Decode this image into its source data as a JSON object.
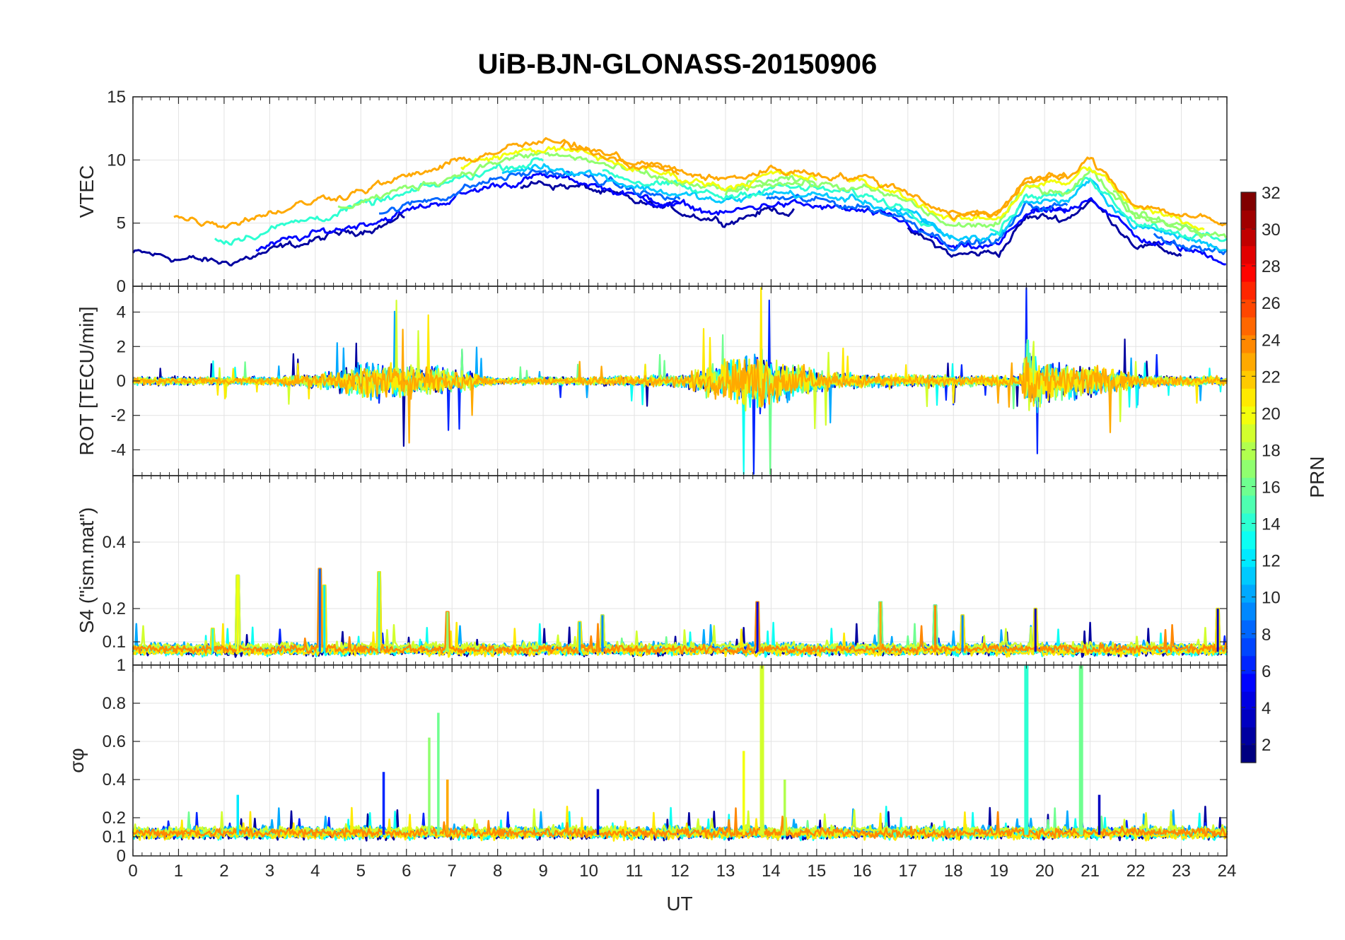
{
  "chart_data": {
    "type": "line",
    "title": "UiB-BJN-GLONASS-20150906",
    "xlabel": "UT",
    "xlim": [
      0,
      24
    ],
    "xticks": [
      "0",
      "1",
      "2",
      "3",
      "4",
      "5",
      "6",
      "7",
      "8",
      "9",
      "10",
      "11",
      "12",
      "13",
      "14",
      "15",
      "16",
      "17",
      "18",
      "19",
      "20",
      "21",
      "22",
      "23",
      "24"
    ],
    "grid": true,
    "colorbar": {
      "label": "PRN",
      "colormap": "jet",
      "range": [
        1,
        32
      ],
      "ticks": [
        "2",
        "4",
        "6",
        "8",
        "10",
        "12",
        "14",
        "16",
        "18",
        "20",
        "22",
        "24",
        "26",
        "28",
        "30",
        "32"
      ]
    },
    "panels": [
      {
        "ylabel": "VTEC",
        "ylim": [
          0,
          15
        ],
        "yticks": [
          "0",
          "5",
          "10",
          "15"
        ],
        "series_color_prn": [
          2,
          5,
          8,
          11,
          14,
          17,
          20,
          23
        ],
        "trend_points": [
          [
            0,
            4.2
          ],
          [
            2,
            3.4
          ],
          [
            4,
            5.2
          ],
          [
            6,
            7.0
          ],
          [
            8,
            9.2
          ],
          [
            9,
            9.8
          ],
          [
            10,
            9.3
          ],
          [
            11,
            8.2
          ],
          [
            12,
            7.5
          ],
          [
            13,
            6.8
          ],
          [
            14,
            7.7
          ],
          [
            15,
            7.4
          ],
          [
            16,
            7.0
          ],
          [
            17,
            6.0
          ],
          [
            18,
            4.0
          ],
          [
            19,
            4.3
          ],
          [
            19.6,
            7.0
          ],
          [
            20.5,
            7.0
          ],
          [
            21,
            8.4
          ],
          [
            22,
            5.0
          ],
          [
            23,
            4.1
          ],
          [
            24,
            3.2
          ]
        ]
      },
      {
        "ylabel": "ROT [TECU/min]",
        "ylim": [
          -5.5,
          5.5
        ],
        "yticks": [
          "-4",
          "-2",
          "0",
          "2",
          "4"
        ],
        "series_color_prn": [
          2,
          6,
          10,
          13,
          16,
          19,
          21,
          23
        ],
        "activity_points": [
          [
            0,
            0.4
          ],
          [
            3,
            0.4
          ],
          [
            4.5,
            0.9
          ],
          [
            5.2,
            1.8
          ],
          [
            6.2,
            1.5
          ],
          [
            7,
            1.2
          ],
          [
            8,
            0.3
          ],
          [
            10,
            0.4
          ],
          [
            12,
            0.6
          ],
          [
            13,
            1.8
          ],
          [
            13.8,
            2.8
          ],
          [
            14.5,
            1.6
          ],
          [
            15.5,
            0.7
          ],
          [
            17,
            0.6
          ],
          [
            18.5,
            0.5
          ],
          [
            19.5,
            0.6
          ],
          [
            19.6,
            4.0
          ],
          [
            20,
            2.0
          ],
          [
            21,
            1.6
          ],
          [
            22,
            0.6
          ],
          [
            24,
            0.4
          ]
        ]
      },
      {
        "ylabel": "S4 (\"ism.mat\")",
        "ylim": [
          0.03,
          0.6
        ],
        "yticks": [
          "0.1",
          "0.2",
          "0.4"
        ],
        "baseline_value": 0.07,
        "peaks": [
          [
            1.75,
            0.14
          ],
          [
            2.3,
            0.3
          ],
          [
            4.1,
            0.32
          ],
          [
            4.2,
            0.27
          ],
          [
            5.4,
            0.31
          ],
          [
            6.9,
            0.19
          ],
          [
            9.8,
            0.16
          ],
          [
            10.3,
            0.18
          ],
          [
            13.7,
            0.22
          ],
          [
            16.4,
            0.22
          ],
          [
            17.6,
            0.21
          ],
          [
            18.2,
            0.18
          ],
          [
            19.8,
            0.2
          ],
          [
            23.8,
            0.2
          ]
        ]
      },
      {
        "ylabel": "σφ",
        "ylim": [
          0,
          1
        ],
        "yticks": [
          "0",
          "0.1",
          "0.2",
          "0.4",
          "0.6",
          "0.8",
          "1"
        ],
        "baseline_value": 0.11,
        "peaks": [
          [
            2.3,
            0.32
          ],
          [
            5.5,
            0.44
          ],
          [
            6.5,
            0.62
          ],
          [
            6.7,
            0.75
          ],
          [
            6.9,
            0.4
          ],
          [
            10.2,
            0.35
          ],
          [
            13.4,
            0.55
          ],
          [
            13.8,
            1.0
          ],
          [
            14.3,
            0.4
          ],
          [
            19.6,
            1.0
          ],
          [
            20.8,
            1.0
          ],
          [
            21.2,
            0.32
          ]
        ]
      }
    ]
  }
}
